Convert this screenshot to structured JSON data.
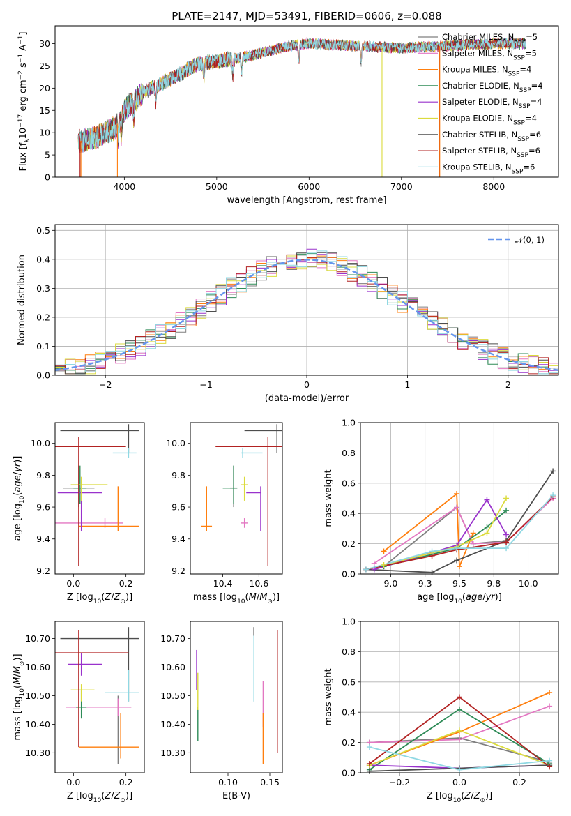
{
  "figure": {
    "title": "PLATE=2147, MJD=53491, FIBERID=0606, z=0.088"
  },
  "colors": {
    "Chabrier MILES": "#7f7f7f",
    "Salpeter MILES": "#e377c2",
    "Kroupa MILES": "#ff7f0e",
    "Chabrier ELODIE": "#2e8b57",
    "Salpeter ELODIE": "#9932cc",
    "Kroupa ELODIE": "#dbdb3d",
    "Chabrier STELIB": "#4d4d4d",
    "Salpeter STELIB": "#b22222",
    "Kroupa STELIB": "#8fd8e3",
    "normal_curve": "#6495ed"
  },
  "chart_data": [
    {
      "id": "spectrum",
      "type": "line",
      "title": "PLATE=2147, MJD=53491, FIBERID=0606, z=0.088",
      "xlabel": "wavelength [Angstrom, rest frame]",
      "ylabel": "Flux [f_λ10^-17 erg cm^-2 s^-1 A^-1]",
      "xlim": [
        3250,
        8700
      ],
      "ylim": [
        0,
        34
      ],
      "xticks": [
        4000,
        5000,
        6000,
        7000,
        8000
      ],
      "yticks": [
        0,
        5,
        10,
        15,
        20,
        25,
        30
      ],
      "grid": false,
      "legend_position": "top-right",
      "series": [
        {
          "name": "Chabrier MILES",
          "n_ssp": 5
        },
        {
          "name": "Salpeter MILES",
          "n_ssp": 5
        },
        {
          "name": "Kroupa MILES",
          "n_ssp": 4
        },
        {
          "name": "Chabrier ELODIE",
          "n_ssp": 4
        },
        {
          "name": "Salpeter ELODIE",
          "n_ssp": 4
        },
        {
          "name": "Kroupa ELODIE",
          "n_ssp": 4
        },
        {
          "name": "Chabrier STELIB",
          "n_ssp": 6
        },
        {
          "name": "Salpeter STELIB",
          "n_ssp": 6
        },
        {
          "name": "Kroupa STELIB",
          "n_ssp": 6
        }
      ],
      "continuum": {
        "x": [
          3500,
          3700,
          3900,
          4000,
          4200,
          4500,
          4800,
          5000,
          5300,
          5600,
          5800,
          6000,
          6500,
          7000,
          7500,
          8000,
          8300
        ],
        "y": [
          8,
          9,
          11,
          15,
          19,
          22,
          25.5,
          26,
          27,
          28.5,
          29.5,
          30,
          29.5,
          29,
          29.5,
          30,
          30
        ]
      },
      "dropouts": [
        {
          "series": "Salpeter STELIB",
          "x": 3520
        },
        {
          "series": "Kroupa MILES",
          "x": 3530
        },
        {
          "series": "Kroupa MILES",
          "x": 3925
        },
        {
          "series": "Kroupa ELODIE",
          "x": 6790
        },
        {
          "series": "Salpeter STELIB",
          "x": 7410
        },
        {
          "series": "Kroupa MILES",
          "x": 7415
        }
      ]
    },
    {
      "id": "residuals",
      "type": "line",
      "xlabel": "(data-model)/error",
      "ylabel": "Normed distribution",
      "xlim": [
        -2.5,
        2.5
      ],
      "ylim": [
        0,
        0.52
      ],
      "xticks": [
        -2,
        -1,
        0,
        1,
        2
      ],
      "yticks": [
        0.0,
        0.1,
        0.2,
        0.3,
        0.4,
        0.5
      ],
      "grid": true,
      "legend_position": "top-right",
      "legend": "𝒩(0, 1)",
      "normal_curve": {
        "mean": 0,
        "sigma": 1
      },
      "histogram_bin_width": 0.1
    },
    {
      "id": "age-vs-Z",
      "type": "scatter",
      "xlabel": "Z [log10(Z/Z⊙)]",
      "ylabel": "age  [log10(age/yr)]",
      "xlim": [
        -0.07,
        0.27
      ],
      "ylim": [
        9.18,
        10.13
      ],
      "xticks": [
        0.0,
        0.2
      ],
      "yticks": [
        9.2,
        9.4,
        9.6,
        9.8,
        10.0
      ],
      "grid": false,
      "points": [
        {
          "series": "Chabrier MILES",
          "x": 0.02,
          "y": 9.72,
          "xerr": [
            0.06,
            0.06
          ],
          "yerr": [
            0.12,
            0.14
          ]
        },
        {
          "series": "Salpeter MILES",
          "x": 0.12,
          "y": 9.5,
          "xerr": [
            0.19,
            0.07
          ],
          "yerr": [
            0.03,
            0.03
          ]
        },
        {
          "series": "Kroupa MILES",
          "x": 0.17,
          "y": 9.48,
          "xerr": [
            0.15,
            0.08
          ],
          "yerr": [
            0.03,
            0.25
          ]
        },
        {
          "series": "Chabrier ELODIE",
          "x": 0.025,
          "y": 9.72,
          "xerr": [
            0.025,
            0.025
          ],
          "yerr": [
            0.1,
            0.14
          ]
        },
        {
          "series": "Salpeter ELODIE",
          "x": 0.03,
          "y": 9.69,
          "xerr": [
            0.09,
            0.08
          ],
          "yerr": [
            0.24,
            0.04
          ]
        },
        {
          "series": "Kroupa ELODIE",
          "x": 0.03,
          "y": 9.74,
          "xerr": [
            0.04,
            0.1
          ],
          "yerr": [
            0.1,
            0.05
          ]
        },
        {
          "series": "Chabrier STELIB",
          "x": 0.21,
          "y": 10.08,
          "xerr": [
            0.26,
            0.04
          ],
          "yerr": [
            0.14,
            0.04
          ]
        },
        {
          "series": "Salpeter STELIB",
          "x": 0.02,
          "y": 9.98,
          "xerr": [
            0.1,
            0.18
          ],
          "yerr": [
            0.75,
            0.06
          ]
        },
        {
          "series": "Kroupa STELIB",
          "x": 0.21,
          "y": 9.94,
          "xerr": [
            0.06,
            0.03
          ],
          "yerr": [
            0.03,
            0.03
          ]
        }
      ]
    },
    {
      "id": "age-vs-mass",
      "type": "scatter",
      "xlabel": "mass [log10(M/M⊙)]",
      "ylabel": "",
      "xlim": [
        10.22,
        10.73
      ],
      "ylim": [
        9.18,
        10.13
      ],
      "xticks": [
        10.4,
        10.6
      ],
      "yticks": [
        9.2,
        9.4,
        9.6,
        9.8,
        10.0
      ],
      "grid": false,
      "points": [
        {
          "series": "Chabrier MILES",
          "x": 10.46,
          "y": 9.72,
          "xerr": [
            0.02,
            0.02
          ],
          "yerr": [
            0.12,
            0.14
          ]
        },
        {
          "series": "Salpeter MILES",
          "x": 10.52,
          "y": 9.5,
          "xerr": [
            0.02,
            0.02
          ],
          "yerr": [
            0.03,
            0.03
          ]
        },
        {
          "series": "Kroupa MILES",
          "x": 10.31,
          "y": 9.48,
          "xerr": [
            0.03,
            0.03
          ],
          "yerr": [
            0.03,
            0.25
          ]
        },
        {
          "series": "Chabrier ELODIE",
          "x": 10.46,
          "y": 9.72,
          "xerr": [
            0.06,
            0.02
          ],
          "yerr": [
            0.1,
            0.14
          ]
        },
        {
          "series": "Salpeter ELODIE",
          "x": 10.61,
          "y": 9.69,
          "xerr": [
            0.08,
            0.0
          ],
          "yerr": [
            0.24,
            0.04
          ]
        },
        {
          "series": "Kroupa ELODIE",
          "x": 10.52,
          "y": 9.74,
          "xerr": [
            0.02,
            0.02
          ],
          "yerr": [
            0.1,
            0.05
          ]
        },
        {
          "series": "Chabrier STELIB",
          "x": 10.7,
          "y": 10.08,
          "xerr": [
            0.18,
            0.03
          ],
          "yerr": [
            0.14,
            0.04
          ]
        },
        {
          "series": "Salpeter STELIB",
          "x": 10.65,
          "y": 9.98,
          "xerr": [
            0.29,
            0.08
          ],
          "yerr": [
            0.75,
            0.06
          ]
        },
        {
          "series": "Kroupa STELIB",
          "x": 10.51,
          "y": 9.94,
          "xerr": [
            0.01,
            0.11
          ],
          "yerr": [
            0.03,
            0.03
          ]
        }
      ]
    },
    {
      "id": "weight-vs-age",
      "type": "line",
      "xlabel": "age  [log10(age/yr)]",
      "ylabel": "mass weight",
      "xlim": [
        8.78,
        10.22
      ],
      "ylim": [
        0,
        1
      ],
      "xticks": [
        9.0,
        9.25,
        9.5,
        9.75,
        10.0
      ],
      "yticks": [
        0.0,
        0.2,
        0.4,
        0.6,
        0.8,
        1.0
      ],
      "grid": true,
      "series": [
        {
          "name": "Chabrier MILES",
          "x": [
            8.95,
            9.48,
            9.6,
            9.84
          ],
          "y": [
            0.05,
            0.44,
            0.2,
            0.22
          ]
        },
        {
          "name": "Salpeter MILES",
          "x": [
            8.88,
            9.48,
            9.6,
            9.84,
            10.18
          ],
          "y": [
            0.07,
            0.44,
            0.2,
            0.21,
            0.5
          ]
        },
        {
          "name": "Kroupa MILES",
          "x": [
            8.95,
            9.48,
            9.5,
            9.6
          ],
          "y": [
            0.15,
            0.53,
            0.05,
            0.27
          ]
        },
        {
          "name": "Chabrier ELODIE",
          "x": [
            8.95,
            9.48,
            9.7,
            9.84
          ],
          "y": [
            0.05,
            0.17,
            0.31,
            0.42
          ]
        },
        {
          "name": "Salpeter ELODIE",
          "x": [
            8.88,
            9.48,
            9.7,
            9.84
          ],
          "y": [
            0.03,
            0.19,
            0.49,
            0.26
          ]
        },
        {
          "name": "Kroupa ELODIE",
          "x": [
            8.95,
            9.48,
            9.7,
            9.84
          ],
          "y": [
            0.06,
            0.18,
            0.27,
            0.5
          ]
        },
        {
          "name": "Chabrier STELIB",
          "x": [
            8.82,
            9.3,
            9.48,
            9.84,
            10.18
          ],
          "y": [
            0.03,
            0.01,
            0.09,
            0.22,
            0.68
          ]
        },
        {
          "name": "Salpeter STELIB",
          "x": [
            8.82,
            9.3,
            9.48,
            9.84,
            10.18
          ],
          "y": [
            0.03,
            0.12,
            0.16,
            0.21,
            0.51
          ]
        },
        {
          "name": "Kroupa STELIB",
          "x": [
            8.82,
            9.3,
            9.48,
            9.84,
            10.18
          ],
          "y": [
            0.03,
            0.15,
            0.17,
            0.17,
            0.52
          ]
        }
      ]
    },
    {
      "id": "mass-vs-Z",
      "type": "scatter",
      "xlabel": "Z [log10(Z/Z⊙)]",
      "ylabel": "mass [log10(M/M⊙)]",
      "xlim": [
        -0.07,
        0.27
      ],
      "ylim": [
        10.23,
        10.76
      ],
      "xticks": [
        0.0,
        0.2
      ],
      "yticks": [
        10.3,
        10.4,
        10.5,
        10.6,
        10.7
      ],
      "grid": false,
      "points": [
        {
          "series": "Chabrier MILES",
          "x": 0.17,
          "y": 10.46,
          "xerr": [
            0.17,
            0.05
          ],
          "yerr": [
            0.2,
            0.04
          ]
        },
        {
          "series": "Salpeter MILES",
          "x": 0.17,
          "y": 10.46,
          "xerr": [
            0.2,
            0.05
          ],
          "yerr": [
            0.03,
            0.03
          ]
        },
        {
          "series": "Kroupa MILES",
          "x": 0.18,
          "y": 10.32,
          "xerr": [
            0.16,
            0.07
          ],
          "yerr": [
            0.04,
            0.12
          ]
        },
        {
          "series": "Chabrier ELODIE",
          "x": 0.03,
          "y": 10.46,
          "xerr": [
            0.02,
            0.02
          ],
          "yerr": [
            0.04,
            0.06
          ]
        },
        {
          "series": "Salpeter ELODIE",
          "x": 0.03,
          "y": 10.61,
          "xerr": [
            0.05,
            0.08
          ],
          "yerr": [
            0.04,
            0.04
          ]
        },
        {
          "series": "Kroupa ELODIE",
          "x": 0.03,
          "y": 10.52,
          "xerr": [
            0.04,
            0.05
          ],
          "yerr": [
            0.04,
            0.02
          ]
        },
        {
          "series": "Chabrier STELIB",
          "x": 0.21,
          "y": 10.7,
          "xerr": [
            0.26,
            0.04
          ],
          "yerr": [
            0.22,
            0.04
          ]
        },
        {
          "series": "Salpeter STELIB",
          "x": 0.02,
          "y": 10.65,
          "xerr": [
            0.1,
            0.19
          ],
          "yerr": [
            0.33,
            0.08
          ]
        },
        {
          "series": "Kroupa STELIB",
          "x": 0.21,
          "y": 10.51,
          "xerr": [
            0.09,
            0.04
          ],
          "yerr": [
            0.03,
            0.08
          ]
        }
      ]
    },
    {
      "id": "mass-vs-ebv",
      "type": "scatter",
      "xlabel": "E(B-V)",
      "ylabel": "",
      "xlim": [
        0.055,
        0.165
      ],
      "ylim": [
        10.23,
        10.76
      ],
      "xticks": [
        0.1,
        0.15
      ],
      "yticks": [
        10.3,
        10.4,
        10.5,
        10.6,
        10.7
      ],
      "grid": false,
      "points": [
        {
          "series": "Chabrier MILES",
          "x": 0.131,
          "y": 10.57,
          "yerr": [
            0.09,
            0.09
          ]
        },
        {
          "series": "Salpeter MILES",
          "x": 0.142,
          "y": 10.46,
          "yerr": [
            0.07,
            0.09
          ]
        },
        {
          "series": "Kroupa MILES",
          "x": 0.142,
          "y": 10.36,
          "yerr": [
            0.1,
            0.08
          ]
        },
        {
          "series": "Chabrier ELODIE",
          "x": 0.064,
          "y": 10.39,
          "yerr": [
            0.05,
            0.07
          ]
        },
        {
          "series": "Salpeter ELODIE",
          "x": 0.0625,
          "y": 10.59,
          "yerr": [
            0.07,
            0.07
          ]
        },
        {
          "series": "Kroupa ELODIE",
          "x": 0.064,
          "y": 10.51,
          "yerr": [
            0.06,
            0.07
          ]
        },
        {
          "series": "Chabrier STELIB",
          "x": 0.131,
          "y": 10.65,
          "yerr": [
            0.16,
            0.09
          ]
        },
        {
          "series": "Salpeter STELIB",
          "x": 0.159,
          "y": 10.51,
          "yerr": [
            0.21,
            0.22
          ]
        },
        {
          "series": "Kroupa STELIB",
          "x": 0.131,
          "y": 10.6,
          "yerr": [
            0.12,
            0.11
          ]
        }
      ]
    },
    {
      "id": "weight-vs-Z",
      "type": "line",
      "xlabel": "Z [log10(Z/Z⊙)]",
      "ylabel": "mass weight",
      "xlim": [
        -0.33,
        0.33
      ],
      "ylim": [
        0,
        1
      ],
      "xticks": [
        -0.2,
        0.0,
        0.2
      ],
      "yticks": [
        0.0,
        0.2,
        0.4,
        0.6,
        0.8,
        1.0
      ],
      "grid": true,
      "series": [
        {
          "name": "Chabrier MILES",
          "x": [
            -0.3,
            0.0,
            0.3
          ],
          "y": [
            0.2,
            0.23,
            0.07
          ]
        },
        {
          "name": "Salpeter MILES",
          "x": [
            -0.3,
            0.0,
            0.3
          ],
          "y": [
            0.2,
            0.22,
            0.44
          ]
        },
        {
          "name": "Kroupa MILES",
          "x": [
            -0.3,
            0.0,
            0.3
          ],
          "y": [
            0.05,
            0.27,
            0.53
          ]
        },
        {
          "name": "Chabrier ELODIE",
          "x": [
            -0.3,
            0.0,
            0.3
          ],
          "y": [
            0.02,
            0.42,
            0.06
          ]
        },
        {
          "name": "Salpeter ELODIE",
          "x": [
            -0.3,
            0.0,
            0.3
          ],
          "y": [
            0.05,
            0.03,
            0.05
          ]
        },
        {
          "name": "Kroupa ELODIE",
          "x": [
            -0.3,
            0.0,
            0.3
          ],
          "y": [
            0.05,
            0.28,
            0.05
          ]
        },
        {
          "name": "Chabrier STELIB",
          "x": [
            -0.3,
            0.0,
            0.3
          ],
          "y": [
            0.01,
            0.03,
            0.05
          ]
        },
        {
          "name": "Salpeter STELIB",
          "x": [
            -0.3,
            0.0,
            0.3
          ],
          "y": [
            0.06,
            0.5,
            0.04
          ]
        },
        {
          "name": "Kroupa STELIB",
          "x": [
            -0.3,
            0.0,
            0.3
          ],
          "y": [
            0.17,
            0.02,
            0.08
          ]
        }
      ]
    }
  ]
}
